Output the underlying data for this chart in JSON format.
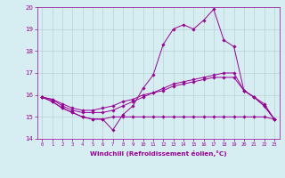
{
  "xlabel": "Windchill (Refroidissement éolien,°C)",
  "background_color": "#d6eef2",
  "grid_color": "#b0cccc",
  "line_color": "#990099",
  "x_ticks": [
    0,
    1,
    2,
    3,
    4,
    5,
    6,
    7,
    8,
    9,
    10,
    11,
    12,
    13,
    14,
    15,
    16,
    17,
    18,
    19,
    20,
    21,
    22,
    23
  ],
  "ylim": [
    14,
    20
  ],
  "yticks": [
    14,
    15,
    16,
    17,
    18,
    19,
    20
  ],
  "line1_x": [
    0,
    1,
    2,
    3,
    4,
    5,
    6,
    7,
    8,
    9,
    10,
    11,
    12,
    13,
    14,
    15,
    16,
    17,
    18,
    19,
    20,
    21,
    22,
    23
  ],
  "line1_y": [
    15.9,
    15.7,
    15.4,
    15.2,
    15.0,
    14.9,
    14.9,
    14.4,
    15.1,
    15.5,
    16.3,
    16.9,
    18.3,
    19.0,
    19.2,
    19.0,
    19.4,
    19.9,
    18.5,
    18.2,
    16.2,
    15.9,
    15.5,
    14.9
  ],
  "line2_x": [
    0,
    1,
    2,
    3,
    4,
    5,
    6,
    7,
    8,
    9,
    10,
    11,
    12,
    13,
    14,
    15,
    16,
    17,
    18,
    19,
    20,
    21,
    22,
    23
  ],
  "line2_y": [
    15.9,
    15.7,
    15.4,
    15.2,
    15.0,
    14.9,
    14.9,
    15.0,
    15.0,
    15.0,
    15.0,
    15.0,
    15.0,
    15.0,
    15.0,
    15.0,
    15.0,
    15.0,
    15.0,
    15.0,
    15.0,
    15.0,
    15.0,
    14.9
  ],
  "line3_x": [
    0,
    1,
    2,
    3,
    4,
    5,
    6,
    7,
    8,
    9,
    10,
    11,
    12,
    13,
    14,
    15,
    16,
    17,
    18,
    19,
    20,
    21,
    22,
    23
  ],
  "line3_y": [
    15.9,
    15.8,
    15.5,
    15.3,
    15.2,
    15.2,
    15.2,
    15.3,
    15.5,
    15.7,
    15.9,
    16.1,
    16.2,
    16.4,
    16.5,
    16.6,
    16.7,
    16.8,
    16.8,
    16.8,
    16.2,
    15.9,
    15.5,
    14.9
  ],
  "line4_x": [
    0,
    1,
    2,
    3,
    4,
    5,
    6,
    7,
    8,
    9,
    10,
    11,
    12,
    13,
    14,
    15,
    16,
    17,
    18,
    19,
    20,
    21,
    22,
    23
  ],
  "line4_y": [
    15.9,
    15.8,
    15.6,
    15.4,
    15.3,
    15.3,
    15.4,
    15.5,
    15.7,
    15.8,
    16.0,
    16.1,
    16.3,
    16.5,
    16.6,
    16.7,
    16.8,
    16.9,
    17.0,
    17.0,
    16.2,
    15.9,
    15.6,
    14.9
  ]
}
